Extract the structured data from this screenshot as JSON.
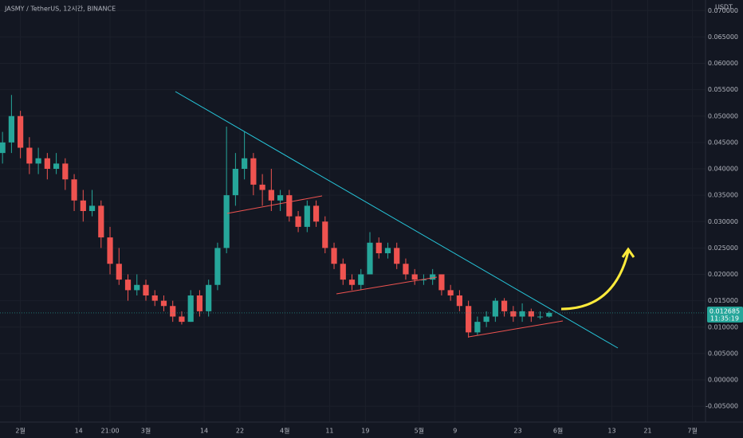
{
  "chart_data": {
    "type": "candlestick",
    "title": "JASMY / TetherUS, 12시간, BINANCE",
    "y_axis_label": "USDT",
    "up_color": "#26a69a",
    "down_color": "#ef5350",
    "grid": true,
    "x": [
      28,
      30,
      32,
      34,
      36,
      38,
      40,
      42,
      44,
      46,
      48,
      50,
      52,
      54,
      56,
      58,
      60,
      62,
      64,
      66,
      68,
      70,
      72,
      74,
      76,
      78,
      80,
      82,
      84,
      86,
      88,
      90,
      92,
      94,
      96,
      98,
      100,
      102,
      104,
      106,
      108,
      110,
      112,
      114,
      116,
      118,
      120,
      122,
      124,
      126,
      128,
      130,
      132,
      134,
      136,
      138,
      140,
      142,
      144,
      146,
      148,
      150
    ],
    "open": [
      0.043,
      0.045,
      0.05,
      0.044,
      0.041,
      0.042,
      0.04,
      0.041,
      0.038,
      0.034,
      0.032,
      0.033,
      0.027,
      0.022,
      0.019,
      0.017,
      0.018,
      0.016,
      0.015,
      0.014,
      0.012,
      0.011,
      0.016,
      0.013,
      0.018,
      0.025,
      0.035,
      0.04,
      0.042,
      0.037,
      0.036,
      0.034,
      0.035,
      0.031,
      0.029,
      0.033,
      0.03,
      0.025,
      0.022,
      0.019,
      0.018,
      0.02,
      0.026,
      0.024,
      0.025,
      0.022,
      0.02,
      0.019,
      0.019,
      0.02,
      0.017,
      0.016,
      0.014,
      0.009,
      0.011,
      0.012,
      0.015,
      0.013,
      0.012,
      0.013,
      0.012,
      0.012
    ],
    "high": [
      0.047,
      0.054,
      0.051,
      0.046,
      0.044,
      0.043,
      0.043,
      0.042,
      0.039,
      0.036,
      0.036,
      0.034,
      0.029,
      0.025,
      0.02,
      0.02,
      0.019,
      0.017,
      0.016,
      0.015,
      0.013,
      0.017,
      0.017,
      0.019,
      0.026,
      0.048,
      0.043,
      0.047,
      0.043,
      0.039,
      0.04,
      0.036,
      0.036,
      0.032,
      0.034,
      0.034,
      0.031,
      0.026,
      0.023,
      0.02,
      0.021,
      0.028,
      0.027,
      0.026,
      0.026,
      0.023,
      0.021,
      0.02,
      0.021,
      0.02,
      0.018,
      0.017,
      0.015,
      0.012,
      0.013,
      0.0155,
      0.0155,
      0.014,
      0.0145,
      0.0135,
      0.013,
      0.013
    ],
    "low": [
      0.041,
      0.043,
      0.042,
      0.039,
      0.039,
      0.038,
      0.039,
      0.036,
      0.032,
      0.03,
      0.031,
      0.025,
      0.02,
      0.018,
      0.015,
      0.016,
      0.015,
      0.014,
      0.013,
      0.011,
      0.0105,
      0.011,
      0.012,
      0.012,
      0.017,
      0.024,
      0.033,
      0.038,
      0.035,
      0.033,
      0.032,
      0.032,
      0.03,
      0.028,
      0.028,
      0.029,
      0.024,
      0.021,
      0.018,
      0.017,
      0.017,
      0.02,
      0.023,
      0.023,
      0.021,
      0.019,
      0.018,
      0.018,
      0.018,
      0.016,
      0.015,
      0.013,
      0.008,
      0.0085,
      0.01,
      0.011,
      0.012,
      0.011,
      0.011,
      0.011,
      0.0115,
      0.0118
    ],
    "close": [
      0.045,
      0.05,
      0.044,
      0.041,
      0.042,
      0.04,
      0.041,
      0.038,
      0.034,
      0.032,
      0.033,
      0.027,
      0.022,
      0.019,
      0.017,
      0.018,
      0.016,
      0.015,
      0.014,
      0.012,
      0.011,
      0.016,
      0.013,
      0.018,
      0.025,
      0.035,
      0.04,
      0.042,
      0.037,
      0.036,
      0.034,
      0.035,
      0.031,
      0.029,
      0.033,
      0.03,
      0.025,
      0.022,
      0.019,
      0.018,
      0.02,
      0.026,
      0.024,
      0.025,
      0.022,
      0.02,
      0.019,
      0.019,
      0.02,
      0.017,
      0.016,
      0.014,
      0.009,
      0.011,
      0.012,
      0.015,
      0.013,
      0.012,
      0.013,
      0.012,
      0.012,
      0.0127
    ],
    "xlim": [
      27.44,
      184.91
    ],
    "xticks": [
      {
        "value": 32,
        "label": "2월"
      },
      {
        "value": 45,
        "label": "14"
      },
      {
        "value": 52,
        "label": "21:00"
      },
      {
        "value": 60,
        "label": "3월"
      },
      {
        "value": 73,
        "label": "14"
      },
      {
        "value": 81,
        "label": "22"
      },
      {
        "value": 91,
        "label": "4월"
      },
      {
        "value": 101,
        "label": "11"
      },
      {
        "value": 109,
        "label": "19"
      },
      {
        "value": 121,
        "label": "5월"
      },
      {
        "value": 129,
        "label": "9"
      },
      {
        "value": 143,
        "label": "23"
      },
      {
        "value": 152,
        "label": "6월"
      },
      {
        "value": 164,
        "label": "13"
      },
      {
        "value": 172,
        "label": "21"
      },
      {
        "value": 182,
        "label": "7월"
      }
    ],
    "ylim": [
      -0.008,
      0.072
    ],
    "yticks": [
      {
        "value": -0.005,
        "label": "-0.005000"
      },
      {
        "value": 0,
        "label": "0.000000"
      },
      {
        "value": 0.005,
        "label": "0.005000"
      },
      {
        "value": 0.01,
        "label": "0.010000"
      },
      {
        "value": 0.015,
        "label": "0.015000"
      },
      {
        "value": 0.02,
        "label": "0.020000"
      },
      {
        "value": 0.025,
        "label": "0.025000"
      },
      {
        "value": 0.03,
        "label": "0.030000"
      },
      {
        "value": 0.035,
        "label": "0.035000"
      },
      {
        "value": 0.04,
        "label": "0.040000"
      },
      {
        "value": 0.045,
        "label": "0.045000"
      },
      {
        "value": 0.05,
        "label": "0.050000"
      },
      {
        "value": 0.055,
        "label": "0.055000"
      },
      {
        "value": 0.06,
        "label": "0.060000"
      },
      {
        "value": 0.065,
        "label": "0.065000"
      },
      {
        "value": 0.07,
        "label": "0.070000"
      }
    ],
    "last_price": {
      "value": 0.012685,
      "label": "0.012685"
    },
    "countdown": "11:35:19"
  }
}
